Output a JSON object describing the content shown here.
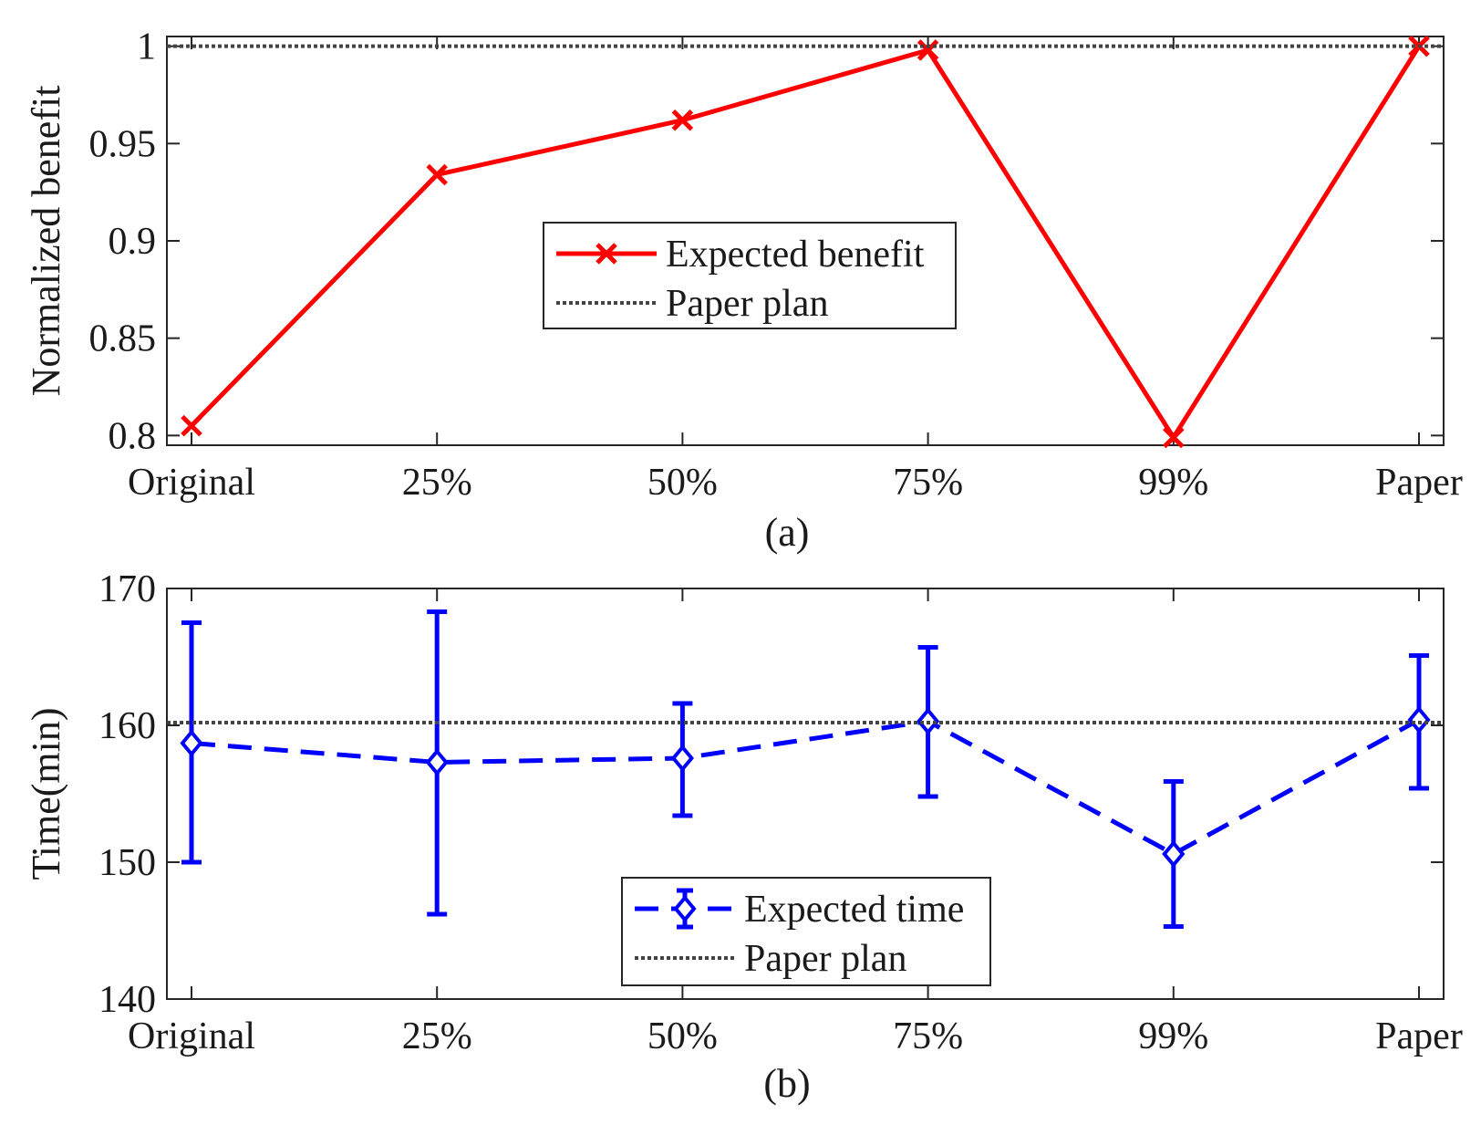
{
  "chart_data": [
    {
      "type": "line",
      "panel_label": "(a)",
      "categories": [
        "Original",
        "25%",
        "50%",
        "75%",
        "99%",
        "Paper"
      ],
      "xlabel": "",
      "ylabel": "Normalized benefit",
      "ylim": [
        0.795,
        1.005
      ],
      "yticks": [
        0.8,
        0.85,
        0.9,
        0.95,
        1
      ],
      "ytick_labels": [
        "0.8",
        "0.85",
        "0.9",
        "0.95",
        "1"
      ],
      "grid": false,
      "legend_position": "center",
      "series": [
        {
          "name": "Expected benefit",
          "style": "solid",
          "marker": "x",
          "color": "#ff0000",
          "values": [
            0.805,
            0.934,
            0.962,
            0.998,
            0.799,
            1.0
          ]
        },
        {
          "name": "Paper plan",
          "style": "dotted",
          "marker": "none",
          "color": "#444444",
          "constant": 1.0
        }
      ]
    },
    {
      "type": "line",
      "panel_label": "(b)",
      "categories": [
        "Original",
        "25%",
        "50%",
        "75%",
        "99%",
        "Paper"
      ],
      "xlabel": "",
      "ylabel": "Time(min)",
      "ylim": [
        140,
        170
      ],
      "yticks": [
        140,
        150,
        160,
        170
      ],
      "ytick_labels": [
        "140",
        "150",
        "160",
        "170"
      ],
      "grid": false,
      "legend_position": "bottom-center",
      "series": [
        {
          "name": "Expected time",
          "style": "dashed",
          "marker": "diamond",
          "color": "#0000ff",
          "values": [
            158.7,
            157.3,
            157.6,
            160.3,
            150.6,
            160.4
          ],
          "error_low": [
            150.0,
            146.2,
            153.4,
            154.8,
            145.3,
            155.4
          ],
          "error_high": [
            167.5,
            168.3,
            161.6,
            165.7,
            155.9,
            165.1
          ]
        },
        {
          "name": "Paper plan",
          "style": "dotted",
          "marker": "none",
          "color": "#444444",
          "constant": 160.2
        }
      ]
    }
  ]
}
